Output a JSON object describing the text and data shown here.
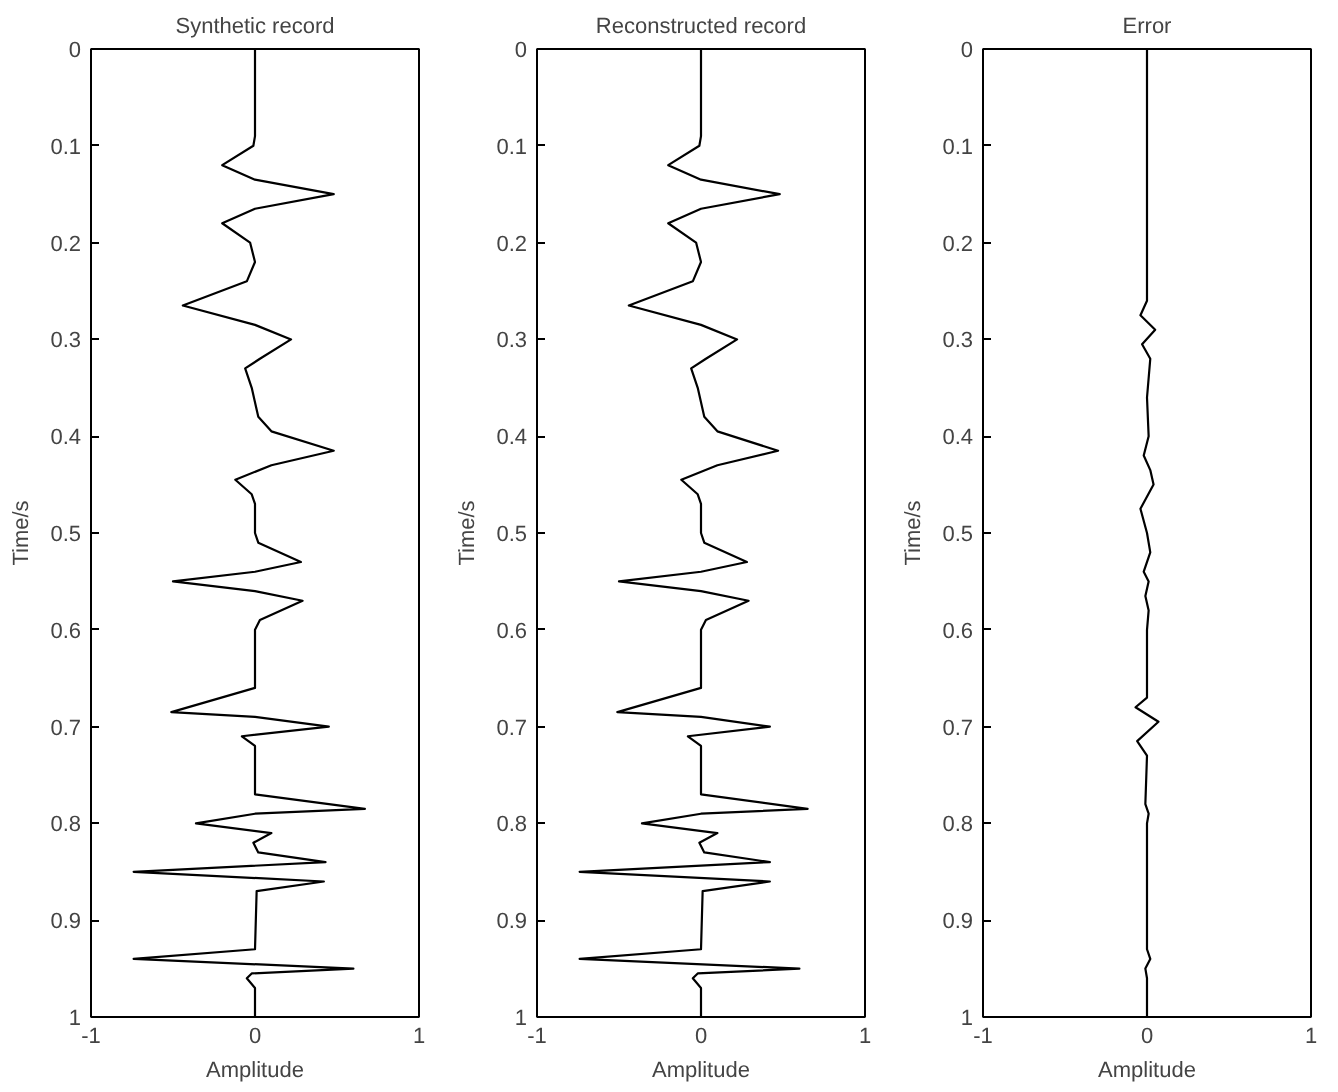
{
  "chart_data": [
    {
      "type": "line",
      "title": "Synthetic record",
      "xlabel": "Amplitude",
      "ylabel": "Time/s",
      "xlim": [
        -1,
        1
      ],
      "xticks": [
        -1,
        0,
        1
      ],
      "ylim": [
        1,
        0
      ],
      "yticks": [
        0,
        0.1,
        0.2,
        0.3,
        0.4,
        0.5,
        0.6,
        0.7,
        0.8,
        0.9,
        1
      ],
      "series": [
        {
          "color": "#000000",
          "x": [
            0,
            0,
            -0.01,
            -0.2,
            0,
            0.48,
            0,
            -0.2,
            -0.03,
            0,
            -0.05,
            -0.44,
            0,
            0.22,
            0.03,
            -0.06,
            -0.02,
            0.02,
            0.1,
            0.48,
            0.1,
            -0.12,
            -0.02,
            0,
            0,
            0.02,
            0.28,
            0,
            -0.5,
            0,
            0.29,
            0.03,
            0,
            0,
            -0.51,
            0,
            0.45,
            -0.08,
            0,
            0,
            0.67,
            0,
            -0.36,
            0.1,
            -0.01,
            0.02,
            0.43,
            -0.74,
            0.42,
            0.01,
            0,
            -0.74,
            0.6,
            -0.02,
            -0.05,
            0,
            0
          ],
          "values": [
            0,
            0.09,
            0.1,
            0.12,
            0.135,
            0.15,
            0.165,
            0.18,
            0.2,
            0.22,
            0.24,
            0.265,
            0.285,
            0.3,
            0.32,
            0.33,
            0.35,
            0.38,
            0.395,
            0.415,
            0.43,
            0.445,
            0.46,
            0.47,
            0.5,
            0.51,
            0.53,
            0.54,
            0.55,
            0.56,
            0.57,
            0.59,
            0.6,
            0.66,
            0.685,
            0.69,
            0.7,
            0.71,
            0.72,
            0.77,
            0.785,
            0.79,
            0.8,
            0.81,
            0.82,
            0.83,
            0.84,
            0.85,
            0.86,
            0.87,
            0.93,
            0.94,
            0.95,
            0.955,
            0.96,
            0.97,
            1
          ]
        }
      ]
    },
    {
      "type": "line",
      "title": "Reconstructed record",
      "xlabel": "Amplitude",
      "ylabel": "Time/s",
      "xlim": [
        -1,
        1
      ],
      "xticks": [
        -1,
        0,
        1
      ],
      "ylim": [
        1,
        0
      ],
      "yticks": [
        0,
        0.1,
        0.2,
        0.3,
        0.4,
        0.5,
        0.6,
        0.7,
        0.8,
        0.9,
        1
      ],
      "series": [
        {
          "color": "#000000",
          "x": [
            0,
            0,
            -0.01,
            -0.2,
            0,
            0.48,
            0,
            -0.2,
            -0.03,
            0,
            -0.05,
            -0.44,
            0,
            0.22,
            0.03,
            -0.06,
            -0.02,
            0.02,
            0.1,
            0.47,
            0.1,
            -0.12,
            -0.02,
            0,
            0,
            0.02,
            0.28,
            0,
            -0.5,
            0,
            0.29,
            0.03,
            0,
            0,
            -0.51,
            0,
            0.42,
            -0.08,
            0,
            0,
            0.65,
            0,
            -0.36,
            0.1,
            -0.01,
            0.02,
            0.42,
            -0.74,
            0.42,
            0.01,
            0,
            -0.74,
            0.6,
            -0.02,
            -0.05,
            0,
            0
          ],
          "values": [
            0,
            0.09,
            0.1,
            0.12,
            0.135,
            0.15,
            0.165,
            0.18,
            0.2,
            0.22,
            0.24,
            0.265,
            0.285,
            0.3,
            0.32,
            0.33,
            0.35,
            0.38,
            0.395,
            0.415,
            0.43,
            0.445,
            0.46,
            0.47,
            0.5,
            0.51,
            0.53,
            0.54,
            0.55,
            0.56,
            0.57,
            0.59,
            0.6,
            0.66,
            0.685,
            0.69,
            0.7,
            0.71,
            0.72,
            0.77,
            0.785,
            0.79,
            0.8,
            0.81,
            0.82,
            0.83,
            0.84,
            0.85,
            0.86,
            0.87,
            0.93,
            0.94,
            0.95,
            0.955,
            0.96,
            0.97,
            1
          ]
        }
      ]
    },
    {
      "type": "line",
      "title": "Error",
      "xlabel": "Amplitude",
      "ylabel": "Time/s",
      "xlim": [
        -1,
        1
      ],
      "xticks": [
        -1,
        0,
        1
      ],
      "ylim": [
        1,
        0
      ],
      "yticks": [
        0,
        0.1,
        0.2,
        0.3,
        0.4,
        0.5,
        0.6,
        0.7,
        0.8,
        0.9,
        1
      ],
      "series": [
        {
          "color": "#000000",
          "x": [
            0,
            0,
            -0.04,
            0.05,
            -0.03,
            0.02,
            0,
            0.01,
            -0.02,
            0.02,
            0.04,
            -0.04,
            0,
            0.02,
            -0.02,
            0.01,
            -0.01,
            0.01,
            0,
            0,
            -0.07,
            0.07,
            -0.06,
            0,
            -0.01,
            0.01,
            0,
            0,
            0.02,
            -0.01,
            0,
            0
          ],
          "values": [
            0,
            0.26,
            0.275,
            0.29,
            0.305,
            0.32,
            0.36,
            0.4,
            0.42,
            0.435,
            0.45,
            0.475,
            0.5,
            0.52,
            0.54,
            0.55,
            0.565,
            0.58,
            0.6,
            0.67,
            0.68,
            0.695,
            0.715,
            0.73,
            0.78,
            0.79,
            0.8,
            0.93,
            0.94,
            0.95,
            0.96,
            1
          ]
        }
      ]
    }
  ]
}
